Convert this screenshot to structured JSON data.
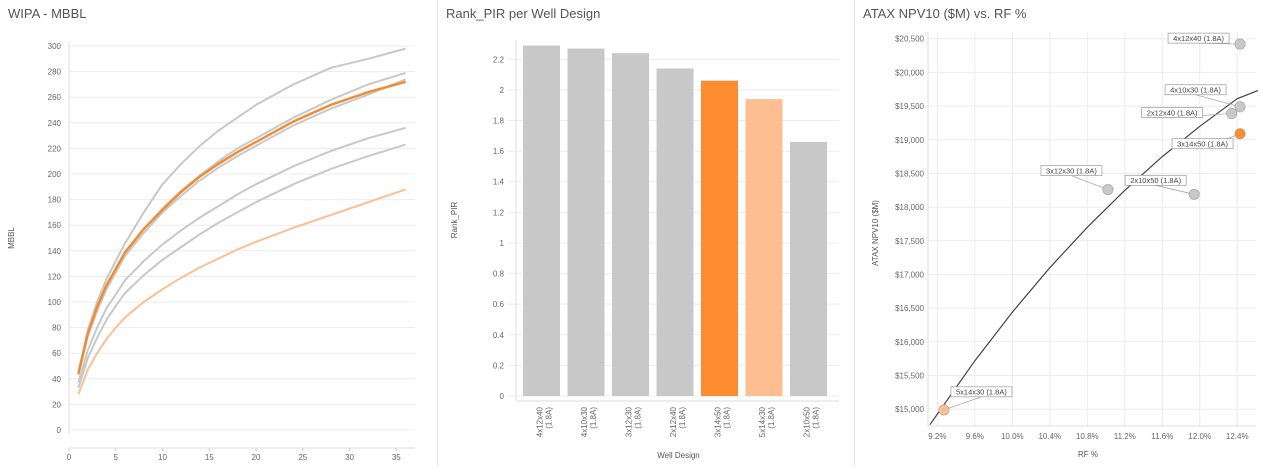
{
  "chart_data": [
    {
      "type": "line",
      "title": "WIPA - MBBL",
      "xlabel": "",
      "ylabel": "MBBL",
      "xlim": [
        0,
        37
      ],
      "ylim": [
        0,
        300
      ],
      "xticks": [
        "0",
        "5",
        "10",
        "15",
        "20",
        "25",
        "30",
        "35"
      ],
      "yticks": [
        "0",
        "20",
        "40",
        "60",
        "80",
        "100",
        "120",
        "140",
        "160",
        "180",
        "200",
        "220",
        "240",
        "260",
        "280",
        "300"
      ],
      "grid": true,
      "series": [
        {
          "name": "4x12x40",
          "color": "#c8c8c8",
          "x": [
            1,
            2,
            3,
            4,
            5,
            6,
            8,
            10,
            12,
            14,
            16,
            18,
            20,
            24,
            28,
            32,
            36
          ],
          "y": [
            45,
            78,
            100,
            118,
            132,
            146,
            170,
            192,
            208,
            222,
            234,
            244,
            254,
            270,
            283,
            290,
            298
          ]
        },
        {
          "name": "4x10x30",
          "color": "#c8c8c8",
          "x": [
            1,
            2,
            3,
            4,
            5,
            6,
            8,
            10,
            12,
            14,
            16,
            18,
            20,
            24,
            28,
            32,
            36
          ],
          "y": [
            44,
            74,
            95,
            111,
            125,
            138,
            157,
            173,
            187,
            199,
            210,
            220,
            228,
            244,
            258,
            270,
            279
          ]
        },
        {
          "name": "3x12x30",
          "color": "#c8c8c8",
          "x": [
            1,
            2,
            3,
            4,
            5,
            6,
            8,
            10,
            12,
            14,
            16,
            18,
            20,
            24,
            28,
            32,
            36
          ],
          "y": [
            43,
            73,
            93,
            110,
            123,
            136,
            154,
            170,
            183,
            195,
            205,
            214,
            222,
            238,
            251,
            262,
            274
          ]
        },
        {
          "name": "2x10x50",
          "color": "#c8c8c8",
          "x": [
            1,
            2,
            3,
            4,
            5,
            6,
            8,
            10,
            12,
            14,
            16,
            18,
            20,
            24,
            28,
            32,
            36
          ],
          "y": [
            37,
            62,
            80,
            95,
            106,
            117,
            132,
            145,
            156,
            166,
            175,
            184,
            192,
            206,
            218,
            228,
            236
          ]
        },
        {
          "name": "2x12x40",
          "color": "#c8c8c8",
          "x": [
            1,
            2,
            3,
            4,
            5,
            6,
            8,
            10,
            12,
            14,
            16,
            18,
            20,
            24,
            28,
            32,
            36
          ],
          "y": [
            33,
            56,
            72,
            86,
            97,
            107,
            121,
            133,
            143,
            153,
            162,
            170,
            178,
            192,
            204,
            214,
            223
          ]
        },
        {
          "name": "3x14x50",
          "color": "#f28a30",
          "x": [
            1,
            2,
            3,
            4,
            5,
            6,
            8,
            10,
            12,
            14,
            16,
            18,
            20,
            24,
            28,
            32,
            36
          ],
          "y": [
            44,
            75,
            96,
            113,
            126,
            139,
            157,
            172,
            186,
            198,
            208,
            217,
            225,
            241,
            254,
            264,
            272
          ]
        },
        {
          "name": "5x14x30",
          "color": "#fdbf92",
          "x": [
            1,
            2,
            3,
            4,
            5,
            6,
            8,
            10,
            12,
            14,
            16,
            18,
            20,
            24,
            28,
            32,
            36
          ],
          "y": [
            28,
            47,
            60,
            71,
            80,
            88,
            100,
            110,
            119,
            127,
            134,
            141,
            147,
            158,
            168,
            178,
            188
          ]
        }
      ]
    },
    {
      "type": "bar",
      "title": "Rank_PIR per Well Design",
      "xlabel": "Well Design",
      "ylabel": "Rank_PIR",
      "ylim": [
        0,
        2.3
      ],
      "yticks": [
        "0",
        "0.2",
        "0.4",
        "0.6",
        "0.8",
        "1",
        "1.2",
        "1.4",
        "1.6",
        "1.8",
        "2",
        "2.2"
      ],
      "categories": [
        "4x12x40 (1.8A)",
        "4x10x30 (1.8A)",
        "3x12x30 (1.8A)",
        "2x12x40 (1.8A)",
        "3x14x50 (1.8A)",
        "5x14x30 (1.8A)",
        "2x10x50 (1.8A)"
      ],
      "values": [
        2.29,
        2.27,
        2.24,
        2.14,
        2.06,
        1.94,
        1.66
      ],
      "colors": [
        "#c8c8c8",
        "#c8c8c8",
        "#c8c8c8",
        "#c8c8c8",
        "#fd8b2f",
        "#fdbf92",
        "#c8c8c8"
      ],
      "grid": true
    },
    {
      "type": "scatter",
      "title": "ATAX NPV10 ($M) vs. RF %",
      "xlabel": "RF %",
      "ylabel": "ATAX NPV10 ($M)",
      "xlim": [
        9.1,
        12.6
      ],
      "ylim": [
        14750,
        20600
      ],
      "xticks": [
        "9.2%",
        "9.6%",
        "10.0%",
        "10.4%",
        "10.8%",
        "11.2%",
        "11.6%",
        "12.0%",
        "12.4%"
      ],
      "yticks": [
        "$15,000",
        "$15,500",
        "$16,000",
        "$16,500",
        "$17,000",
        "$17,500",
        "$18,000",
        "$18,500",
        "$19,000",
        "$19,500",
        "$20,000",
        "$20,500"
      ],
      "points": [
        {
          "label": "4x12x40 (1.8A)",
          "x": 12.43,
          "y": 20420,
          "color": "#c8c8c8"
        },
        {
          "label": "4x10x30 (1.8A)",
          "x": 12.43,
          "y": 19490,
          "color": "#c8c8c8"
        },
        {
          "label": "2x12x40 (1.8A)",
          "x": 12.34,
          "y": 19390,
          "color": "#c8c8c8"
        },
        {
          "label": "3x14x50 (1.8A)",
          "x": 12.43,
          "y": 19090,
          "color": "#fd8b2f"
        },
        {
          "label": "3x12x30 (1.8A)",
          "x": 11.02,
          "y": 18260,
          "color": "#c8c8c8"
        },
        {
          "label": "2x10x50 (1.8A)",
          "x": 11.94,
          "y": 18190,
          "color": "#c8c8c8"
        },
        {
          "label": "5x14x30 (1.8A)",
          "x": 9.27,
          "y": 14990,
          "color": "#fdbf92"
        }
      ],
      "trend_line": {
        "x": [
          9.12,
          9.6,
          10.0,
          10.4,
          10.8,
          11.2,
          11.6,
          12.0,
          12.4,
          12.62
        ],
        "y": [
          14770,
          15720,
          16440,
          17100,
          17700,
          18250,
          18750,
          19200,
          19610,
          19730
        ]
      },
      "grid": true
    }
  ]
}
